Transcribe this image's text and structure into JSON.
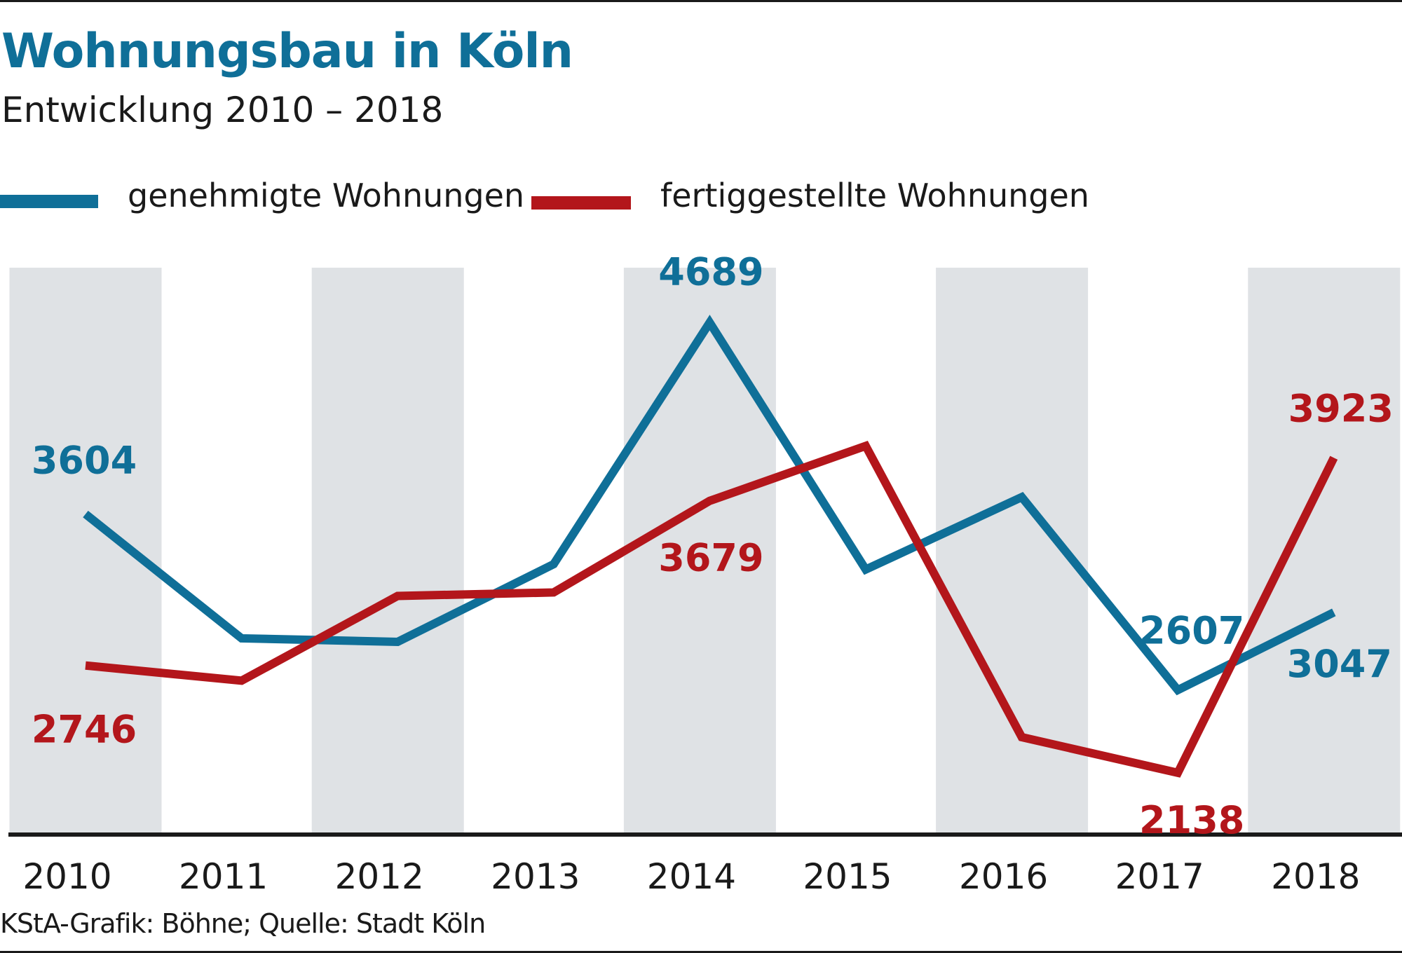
{
  "chart_data": {
    "type": "line",
    "title": "Wohnungsbau in Köln",
    "subtitle": "Entwicklung 2010 – 2018",
    "categories": [
      "2010",
      "2011",
      "2012",
      "2013",
      "2014",
      "2015",
      "2016",
      "2017",
      "2018"
    ],
    "series": [
      {
        "name": "genehmigte Wohnungen",
        "color": "#0f6f98",
        "values": [
          3604,
          2900,
          2880,
          3320,
          4689,
          3290,
          3700,
          2607,
          3047
        ],
        "labeled": [
          {
            "index": 0,
            "text": "3604"
          },
          {
            "index": 4,
            "text": "4689"
          },
          {
            "index": 7,
            "text": "2607"
          },
          {
            "index": 8,
            "text": "3047"
          }
        ]
      },
      {
        "name": "fertiggestellte Wohnungen",
        "color": "#b3161b",
        "values": [
          2746,
          2660,
          3140,
          3160,
          3679,
          3990,
          2340,
          2138,
          3923
        ],
        "labeled": [
          {
            "index": 0,
            "text": "2746"
          },
          {
            "index": 4,
            "text": "3679"
          },
          {
            "index": 7,
            "text": "2138"
          },
          {
            "index": 8,
            "text": "3923"
          }
        ]
      }
    ],
    "ylim": [
      1800,
      5000
    ],
    "xlabel": "",
    "ylabel": "",
    "grid": false,
    "legend_position": "top-left",
    "band_color": "#dfe2e5"
  },
  "source": "KStA-Grafik: Böhne; Quelle: Stadt Köln"
}
